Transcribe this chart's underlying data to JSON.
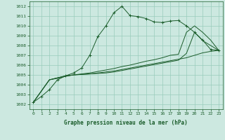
{
  "title": "Graphe pression niveau de la mer (hPa)",
  "bg_color": "#cce8e0",
  "grid_color": "#99ccbb",
  "line_color": "#1a5c2a",
  "xlim": [
    -0.5,
    23.5
  ],
  "ylim": [
    1001.5,
    1012.5
  ],
  "yticks": [
    1002,
    1003,
    1004,
    1005,
    1006,
    1007,
    1008,
    1009,
    1010,
    1011,
    1012
  ],
  "xticks": [
    0,
    1,
    2,
    3,
    4,
    5,
    6,
    7,
    8,
    9,
    10,
    11,
    12,
    13,
    14,
    15,
    16,
    17,
    18,
    19,
    20,
    21,
    22,
    23
  ],
  "series1_x": [
    0,
    1,
    2,
    3,
    4,
    5,
    6,
    7,
    8,
    9,
    10,
    11,
    12,
    13,
    14,
    15,
    16,
    17,
    18,
    19,
    20,
    21,
    22,
    23
  ],
  "series1_y": [
    1002.2,
    1002.8,
    1003.5,
    1004.5,
    1004.9,
    1005.2,
    1005.7,
    1007.0,
    1008.9,
    1010.0,
    1011.35,
    1012.0,
    1011.05,
    1010.95,
    1010.75,
    1010.4,
    1010.35,
    1010.5,
    1010.55,
    1010.0,
    1009.35,
    1008.55,
    1007.6,
    1007.5
  ],
  "series2_x": [
    0,
    2,
    3,
    4,
    5,
    6,
    7,
    8,
    9,
    10,
    11,
    12,
    13,
    14,
    15,
    16,
    17,
    18,
    19,
    20,
    21,
    22,
    23
  ],
  "series2_y": [
    1002.2,
    1004.5,
    1004.7,
    1004.9,
    1005.0,
    1005.1,
    1005.2,
    1005.35,
    1005.5,
    1005.65,
    1005.85,
    1006.0,
    1006.2,
    1006.4,
    1006.55,
    1006.75,
    1007.0,
    1007.1,
    1009.35,
    1010.0,
    1009.35,
    1008.55,
    1007.5
  ],
  "series3_x": [
    0,
    2,
    3,
    4,
    5,
    6,
    7,
    8,
    9,
    10,
    11,
    12,
    13,
    14,
    15,
    16,
    17,
    18,
    19,
    20,
    21,
    22,
    23
  ],
  "series3_y": [
    1002.2,
    1004.5,
    1004.7,
    1004.9,
    1005.0,
    1005.05,
    1005.1,
    1005.2,
    1005.3,
    1005.4,
    1005.55,
    1005.7,
    1005.85,
    1006.0,
    1006.15,
    1006.3,
    1006.45,
    1006.6,
    1006.75,
    1007.0,
    1007.25,
    1007.4,
    1007.5
  ],
  "series4_x": [
    0,
    2,
    3,
    4,
    5,
    6,
    7,
    8,
    9,
    10,
    11,
    12,
    13,
    14,
    15,
    16,
    17,
    18,
    19,
    20,
    21,
    22,
    23
  ],
  "series4_y": [
    1002.2,
    1004.5,
    1004.65,
    1004.85,
    1005.0,
    1005.05,
    1005.1,
    1005.15,
    1005.2,
    1005.3,
    1005.45,
    1005.6,
    1005.75,
    1005.9,
    1006.05,
    1006.2,
    1006.35,
    1006.5,
    1007.2,
    1009.35,
    1008.5,
    1008.0,
    1007.5
  ]
}
